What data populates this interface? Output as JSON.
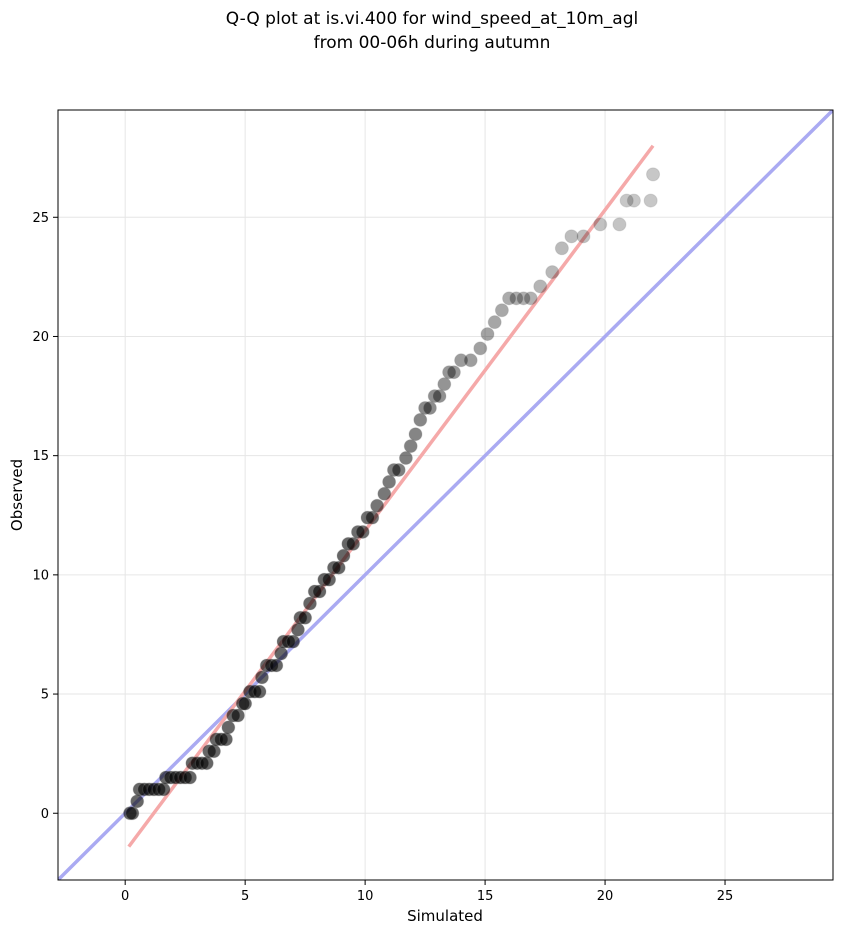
{
  "chart_data": {
    "type": "scatter",
    "title_line1": "Q-Q plot at is.vi.400 for wind_speed_at_10m_agl",
    "title_line2": "from 00-06h during autumn",
    "xlabel": "Simulated",
    "ylabel": "Observed",
    "xlim": [
      -2.8,
      29.5
    ],
    "ylim": [
      -2.8,
      29.5
    ],
    "xticks": [
      0,
      5,
      10,
      15,
      20,
      25
    ],
    "yticks": [
      0,
      5,
      10,
      15,
      20,
      25
    ],
    "grid": true,
    "reference_line": {
      "name": "1:1",
      "color": "#aaaaf2",
      "x": [
        -2.8,
        29.5
      ],
      "y": [
        -2.8,
        29.5
      ]
    },
    "fit_line": {
      "color": "#f5a9a9",
      "x": [
        0.15,
        22.0
      ],
      "y": [
        -1.4,
        28.0
      ]
    },
    "points": [
      [
        0.2,
        0.0
      ],
      [
        0.3,
        0.0
      ],
      [
        0.5,
        0.5
      ],
      [
        0.6,
        1.0
      ],
      [
        0.8,
        1.0
      ],
      [
        1.0,
        1.0
      ],
      [
        1.2,
        1.0
      ],
      [
        1.4,
        1.0
      ],
      [
        1.6,
        1.0
      ],
      [
        1.7,
        1.5
      ],
      [
        1.9,
        1.5
      ],
      [
        2.1,
        1.5
      ],
      [
        2.3,
        1.5
      ],
      [
        2.5,
        1.5
      ],
      [
        2.7,
        1.5
      ],
      [
        2.8,
        2.1
      ],
      [
        3.0,
        2.1
      ],
      [
        3.2,
        2.1
      ],
      [
        3.4,
        2.1
      ],
      [
        3.5,
        2.6
      ],
      [
        3.7,
        2.6
      ],
      [
        3.8,
        3.1
      ],
      [
        4.0,
        3.1
      ],
      [
        4.2,
        3.1
      ],
      [
        4.3,
        3.6
      ],
      [
        4.5,
        4.1
      ],
      [
        4.7,
        4.1
      ],
      [
        4.9,
        4.6
      ],
      [
        5.0,
        4.6
      ],
      [
        5.2,
        5.1
      ],
      [
        5.4,
        5.1
      ],
      [
        5.6,
        5.1
      ],
      [
        5.7,
        5.7
      ],
      [
        5.9,
        6.2
      ],
      [
        6.1,
        6.2
      ],
      [
        6.3,
        6.2
      ],
      [
        6.5,
        6.7
      ],
      [
        6.6,
        7.2
      ],
      [
        6.8,
        7.2
      ],
      [
        7.0,
        7.2
      ],
      [
        7.2,
        7.7
      ],
      [
        7.3,
        8.2
      ],
      [
        7.5,
        8.2
      ],
      [
        7.7,
        8.8
      ],
      [
        7.9,
        9.3
      ],
      [
        8.1,
        9.3
      ],
      [
        8.3,
        9.8
      ],
      [
        8.5,
        9.8
      ],
      [
        8.7,
        10.3
      ],
      [
        8.9,
        10.3
      ],
      [
        9.1,
        10.8
      ],
      [
        9.3,
        11.3
      ],
      [
        9.5,
        11.3
      ],
      [
        9.7,
        11.8
      ],
      [
        9.9,
        11.8
      ],
      [
        10.1,
        12.4
      ],
      [
        10.3,
        12.4
      ],
      [
        10.5,
        12.9
      ],
      [
        10.8,
        13.4
      ],
      [
        11.0,
        13.9
      ],
      [
        11.2,
        14.4
      ],
      [
        11.4,
        14.4
      ],
      [
        11.7,
        14.9
      ],
      [
        11.9,
        15.4
      ],
      [
        12.1,
        15.9
      ],
      [
        12.3,
        16.5
      ],
      [
        12.5,
        17.0
      ],
      [
        12.7,
        17.0
      ],
      [
        12.9,
        17.5
      ],
      [
        13.1,
        17.5
      ],
      [
        13.3,
        18.0
      ],
      [
        13.5,
        18.5
      ],
      [
        13.7,
        18.5
      ],
      [
        14.0,
        19.0
      ],
      [
        14.4,
        19.0
      ],
      [
        14.8,
        19.5
      ],
      [
        15.1,
        20.1
      ],
      [
        15.4,
        20.6
      ],
      [
        15.7,
        21.1
      ],
      [
        16.0,
        21.6
      ],
      [
        16.3,
        21.6
      ],
      [
        16.6,
        21.6
      ],
      [
        16.9,
        21.6
      ],
      [
        17.3,
        22.1
      ],
      [
        17.8,
        22.7
      ],
      [
        18.2,
        23.7
      ],
      [
        18.6,
        24.2
      ],
      [
        19.1,
        24.2
      ],
      [
        19.8,
        24.7
      ],
      [
        20.6,
        24.7
      ],
      [
        20.9,
        25.7
      ],
      [
        21.2,
        25.7
      ],
      [
        21.9,
        25.7
      ],
      [
        22.0,
        26.8
      ]
    ]
  }
}
